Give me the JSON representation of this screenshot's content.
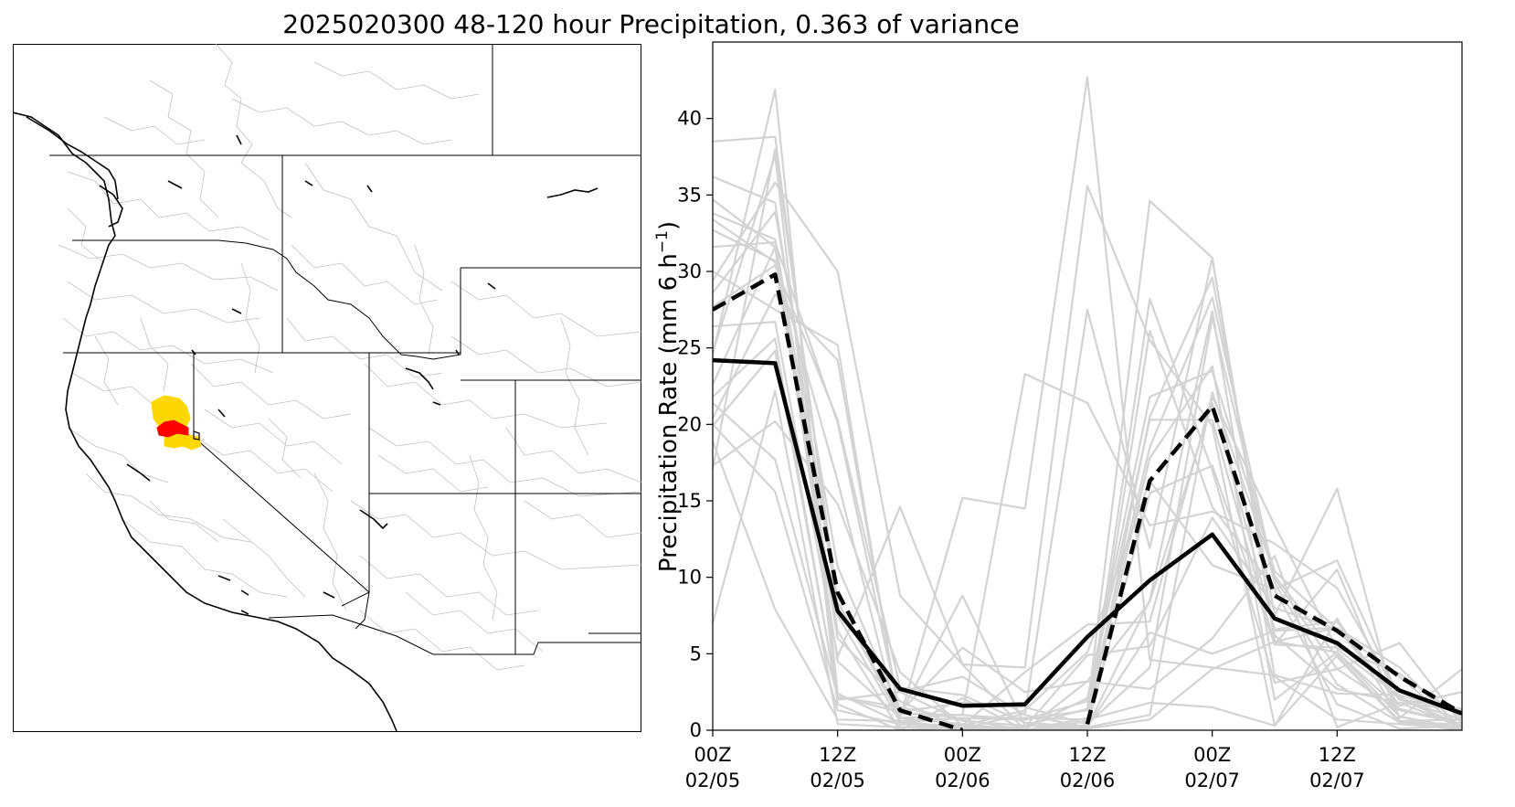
{
  "title": "2025020300 48-120 hour Precipitation, 0.363 of variance",
  "map": {
    "basin_colors": {
      "high": "#ff0000",
      "medium": "#ffd700"
    },
    "state_border_color": "#000000",
    "basin_outline_color": "#bfbfbf"
  },
  "chart_data": {
    "type": "line",
    "title": "",
    "xlabel": "",
    "ylabel": "Precipitation Rate (mm 6 h",
    "ylabel_sup": "−1",
    "ylabel_close": ")",
    "xlim": [
      0,
      12
    ],
    "ylim": [
      0,
      45
    ],
    "yticks": [
      0,
      5,
      10,
      15,
      20,
      25,
      30,
      35,
      40
    ],
    "xticks": [
      {
        "x": 0,
        "line1": "00Z",
        "line2": "02/05"
      },
      {
        "x": 2,
        "line1": "12Z",
        "line2": "02/05"
      },
      {
        "x": 4,
        "line1": "00Z",
        "line2": "02/06"
      },
      {
        "x": 6,
        "line1": "12Z",
        "line2": "02/06"
      },
      {
        "x": 8,
        "line1": "00Z",
        "line2": "02/07"
      },
      {
        "x": 10,
        "line1": "12Z",
        "line2": "02/07"
      }
    ],
    "colors": {
      "ensemble": "#d3d3d3",
      "mean": "#000000",
      "dashed": "#000000"
    },
    "ensemble": [
      [
        38.5,
        38.8,
        7.5,
        0.6,
        0.1,
        0.0,
        0.1,
        0.7,
        4.0,
        5.8,
        5.1,
        1.4,
        0.4
      ],
      [
        36.2,
        34.5,
        7.9,
        2.5,
        0.6,
        0.3,
        1.4,
        34.6,
        30.9,
        6.2,
        2.7,
        1.8,
        1.3
      ],
      [
        24.6,
        41.9,
        2.4,
        0.5,
        0.0,
        0.1,
        2.1,
        21.8,
        23.5,
        10.4,
        6.6,
        2.0,
        1.4
      ],
      [
        17.1,
        38.0,
        8.4,
        0.8,
        0.4,
        0.0,
        0.2,
        8.5,
        27.4,
        3.5,
        0.7,
        0.4,
        0.1
      ],
      [
        34.7,
        31.6,
        4.5,
        0.8,
        15.2,
        14.5,
        42.7,
        4.6,
        4.1,
        3.6,
        2.4,
        2.3,
        1.1
      ],
      [
        7.0,
        22.2,
        0.4,
        0.2,
        0.3,
        0.0,
        0.6,
        28.2,
        17.0,
        3.1,
        4.0,
        1.3,
        0.4
      ],
      [
        26.4,
        26.7,
        4.8,
        14.6,
        4.3,
        4.1,
        35.6,
        25.5,
        19.9,
        0.3,
        7.3,
        0.9,
        0.1
      ],
      [
        20.4,
        28.5,
        24.2,
        0.8,
        1.0,
        23.3,
        21.4,
        13.4,
        14.3,
        12.2,
        9.3,
        2.1,
        0.2
      ],
      [
        29.4,
        35.8,
        30.0,
        8.8,
        4.3,
        0.0,
        0.2,
        20.5,
        29.6,
        7.5,
        15.8,
        0.6,
        0.2
      ],
      [
        22.6,
        31.6,
        6.5,
        0.0,
        0.2,
        0.2,
        4.9,
        5.5,
        13.9,
        8.0,
        6.6,
        3.5,
        0.0
      ],
      [
        33.8,
        32.1,
        8.4,
        1.0,
        8.8,
        0.3,
        0.3,
        15.5,
        17.3,
        5.6,
        10.5,
        0.8,
        4.0
      ],
      [
        17.3,
        20.2,
        14.8,
        3.8,
        0.3,
        3.8,
        6.9,
        7.1,
        21.8,
        13.4,
        5.3,
        2.2,
        0.1
      ],
      [
        28.6,
        33.9,
        10.7,
        1.2,
        5.4,
        2.5,
        3.2,
        2.7,
        6.0,
        11.4,
        0.2,
        1.8,
        0.2
      ],
      [
        33.4,
        30.6,
        6.0,
        1.9,
        0.1,
        1.1,
        27.5,
        11.9,
        30.9,
        5.8,
        6.7,
        2.0,
        0.7
      ],
      [
        19.9,
        24.8,
        2.2,
        1.5,
        0.7,
        0.0,
        0.3,
        26.1,
        14.6,
        9.2,
        11.1,
        2.1,
        0.3
      ],
      [
        27.7,
        30.4,
        20.3,
        2.8,
        2.3,
        0.5,
        0.2,
        1.0,
        22.1,
        10.1,
        4.8,
        0.5,
        0.0
      ],
      [
        30.0,
        27.5,
        25.2,
        0.5,
        0.8,
        0.7,
        1.3,
        18.5,
        28.3,
        9.9,
        4.0,
        5.7,
        0.4
      ],
      [
        21.4,
        17.7,
        2.2,
        1.2,
        1.8,
        1.5,
        0.4,
        4.1,
        27.0,
        9.6,
        3.0,
        0.5,
        0.4
      ],
      [
        24.7,
        37.6,
        1.7,
        0.0,
        2.1,
        0.0,
        3.2,
        8.4,
        21.4,
        6.6,
        7.1,
        1.6,
        2.5
      ],
      [
        21.8,
        25.6,
        2.0,
        2.5,
        3.5,
        1.0,
        0.2,
        6.4,
        5.0,
        6.5,
        6.7,
        4.1,
        0.1
      ],
      [
        20.0,
        15.6,
        1.3,
        0.4,
        0.3,
        1.3,
        5.1,
        16.3,
        10.8,
        9.2,
        1.7,
        0.1,
        0.3
      ],
      [
        32.7,
        30.7,
        16.3,
        0.2,
        0.2,
        0.0,
        0.8,
        17.8,
        23.8,
        2.0,
        5.1,
        0.9,
        0.0
      ],
      [
        31.6,
        31.9,
        20.1,
        1.1,
        1.0,
        0.7,
        1.9,
        20.3,
        20.3,
        5.6,
        5.4,
        3.7,
        0.8
      ],
      [
        18.9,
        7.9,
        0.7,
        0.6,
        0.8,
        0.8,
        0.7,
        1.8,
        1.5,
        0.3,
        4.9,
        0.6,
        0.7
      ]
    ],
    "series": [
      {
        "name": "",
        "style": "solid",
        "values": [
          24.2,
          24.0,
          7.8,
          2.7,
          1.6,
          1.7,
          6.1,
          9.8,
          12.8,
          7.3,
          5.7,
          2.6,
          1.1
        ]
      },
      {
        "name": "",
        "style": "dashed",
        "values": [
          27.5,
          29.8,
          9.0,
          1.3,
          0.0,
          null,
          0.4,
          16.3,
          21.2,
          8.8,
          6.5,
          3.5,
          1.1
        ]
      }
    ]
  }
}
